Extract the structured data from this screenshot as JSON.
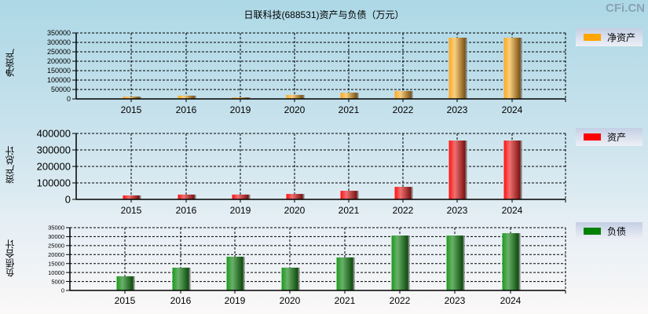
{
  "title": "日联科技(688531)资产与负债（万元）",
  "brand": "CFi.CN",
  "colors": {
    "net_assets": "#ffa500",
    "total_assets": "#ff0000",
    "total_liabilities": "#008000"
  },
  "chart_data": [
    {
      "type": "bar",
      "title": "日联科技(688531)资产与负债（万元）",
      "ylabel": "净资产",
      "legend": "净资产",
      "categories": [
        "2015",
        "2016",
        "2019",
        "2020",
        "2021",
        "2022",
        "2023",
        "2024"
      ],
      "values": [
        12000,
        17000,
        8000,
        21000,
        33000,
        42000,
        325000,
        325000
      ],
      "yticks": [
        0,
        50000,
        100000,
        150000,
        200000,
        250000,
        300000,
        350000
      ],
      "ylim": [
        0,
        350000
      ],
      "grid": true,
      "legend_position": "right"
    },
    {
      "type": "bar",
      "ylabel": "资产总计",
      "legend": "资产",
      "categories": [
        "2015",
        "2016",
        "2019",
        "2020",
        "2021",
        "2022",
        "2023",
        "2024"
      ],
      "values": [
        24000,
        29000,
        29000,
        33000,
        52000,
        76000,
        357000,
        357000
      ],
      "yticks": [
        0,
        100000,
        200000,
        300000,
        400000
      ],
      "ylim": [
        0,
        400000
      ],
      "grid": true,
      "legend_position": "right"
    },
    {
      "type": "bar",
      "ylabel": "负债合计",
      "legend": "负债",
      "categories": [
        "2015",
        "2016",
        "2019",
        "2020",
        "2021",
        "2022",
        "2023",
        "2024"
      ],
      "values": [
        7900,
        12700,
        18800,
        12700,
        18400,
        30600,
        30600,
        31900
      ],
      "yticks": [
        0,
        5000,
        10000,
        15000,
        20000,
        25000,
        30000,
        35000
      ],
      "ylim": [
        0,
        35000
      ],
      "grid": true,
      "legend_position": "right"
    }
  ]
}
